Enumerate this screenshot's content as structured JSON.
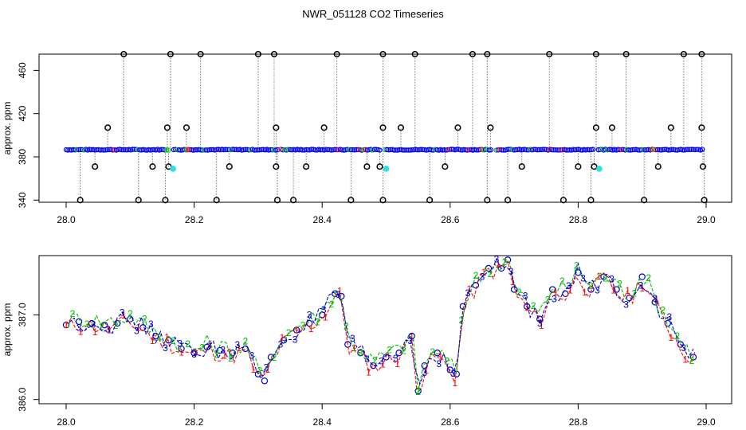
{
  "title": "NWR_051128  CO2 Timeseries",
  "chart_data": [
    {
      "type": "scatter",
      "panel": "top",
      "ylabel": "approx. ppm",
      "xlabel": "",
      "xlim": [
        28.0,
        29.0
      ],
      "ylim": [
        338,
        475
      ],
      "x_ticks": [
        "28.0",
        "28.2",
        "28.4",
        "28.6",
        "28.8",
        "29.0"
      ],
      "y_ticks": [
        "340",
        "380",
        "420",
        "460"
      ],
      "grid": false,
      "baseline_ppm": 386.6,
      "baseline_gaps": [
        28.163,
        28.333,
        28.495,
        28.667,
        28.828
      ],
      "colors": {
        "main": "#0000ff",
        "accent_green": "#00cc00",
        "accent_red": "#ff0000",
        "outlier": "#000000",
        "cal": "#33e0e0",
        "drop_line": "#888888"
      },
      "outliers_high": [
        28.09,
        28.163,
        28.21,
        28.3,
        28.325,
        28.423,
        28.495,
        28.545,
        28.635,
        28.658,
        28.755,
        28.828,
        28.875,
        28.965,
        28.993
      ],
      "outliers_mid_high": [
        28.065,
        28.158,
        28.188,
        28.328,
        28.403,
        28.495,
        28.523,
        28.612,
        28.663,
        28.828,
        28.853,
        28.945,
        28.993
      ],
      "outliers_low": [
        28.022,
        28.113,
        28.155,
        28.235,
        28.33,
        28.355,
        28.445,
        28.495,
        28.568,
        28.658,
        28.69,
        28.777,
        28.82,
        28.903,
        28.997
      ],
      "outliers_mid_low": [
        28.045,
        28.135,
        28.16,
        28.255,
        28.328,
        28.375,
        28.47,
        28.49,
        28.592,
        28.712,
        28.8,
        28.825,
        28.925,
        28.995
      ],
      "cal_points": [
        {
          "x": 28.167,
          "y": 369
        },
        {
          "x": 28.5,
          "y": 369
        },
        {
          "x": 28.833,
          "y": 369
        }
      ],
      "top_value": 475,
      "bottom_value": 340
    },
    {
      "type": "line",
      "panel": "bottom",
      "ylabel": "approx. ppm",
      "xlabel": "",
      "xlim": [
        28.0,
        29.0
      ],
      "ylim": [
        385.95,
        387.7
      ],
      "x_ticks": [
        "28.0",
        "28.2",
        "28.4",
        "28.6",
        "28.8",
        "29.0"
      ],
      "y_ticks": [
        "386.0",
        "387.0"
      ],
      "grid": false,
      "series": [
        {
          "name": "1",
          "color": "#ff0000",
          "marker_text": "1"
        },
        {
          "name": "2",
          "color": "#00bb00",
          "marker_text": "2"
        },
        {
          "name": "3",
          "color": "#0000cc",
          "marker_text": "3"
        }
      ],
      "x": [
        28.0,
        28.02,
        28.04,
        28.06,
        28.08,
        28.1,
        28.12,
        28.14,
        28.16,
        28.18,
        28.2,
        28.22,
        28.24,
        28.26,
        28.28,
        28.3,
        28.31,
        28.32,
        28.34,
        28.36,
        28.38,
        28.4,
        28.42,
        28.43,
        28.44,
        28.46,
        28.48,
        28.5,
        28.52,
        28.54,
        28.55,
        28.56,
        28.58,
        28.6,
        28.61,
        28.62,
        28.64,
        28.66,
        28.68,
        28.69,
        28.7,
        28.72,
        28.74,
        28.76,
        28.78,
        28.8,
        28.82,
        28.84,
        28.86,
        28.88,
        28.9,
        28.92,
        28.94,
        28.96,
        28.98
      ],
      "y": [
        386.88,
        386.92,
        386.9,
        386.88,
        386.9,
        386.95,
        386.85,
        386.75,
        386.7,
        386.6,
        386.55,
        386.62,
        386.58,
        386.55,
        386.6,
        386.3,
        386.22,
        386.5,
        386.7,
        386.82,
        386.9,
        387.0,
        387.25,
        387.22,
        386.65,
        386.55,
        386.4,
        386.5,
        386.55,
        386.75,
        386.1,
        386.4,
        386.55,
        386.35,
        386.3,
        387.1,
        387.35,
        387.55,
        387.55,
        387.65,
        387.3,
        387.1,
        386.95,
        387.3,
        387.25,
        387.5,
        387.3,
        387.45,
        387.3,
        387.2,
        387.45,
        387.15,
        386.9,
        386.65,
        386.5
      ]
    }
  ]
}
